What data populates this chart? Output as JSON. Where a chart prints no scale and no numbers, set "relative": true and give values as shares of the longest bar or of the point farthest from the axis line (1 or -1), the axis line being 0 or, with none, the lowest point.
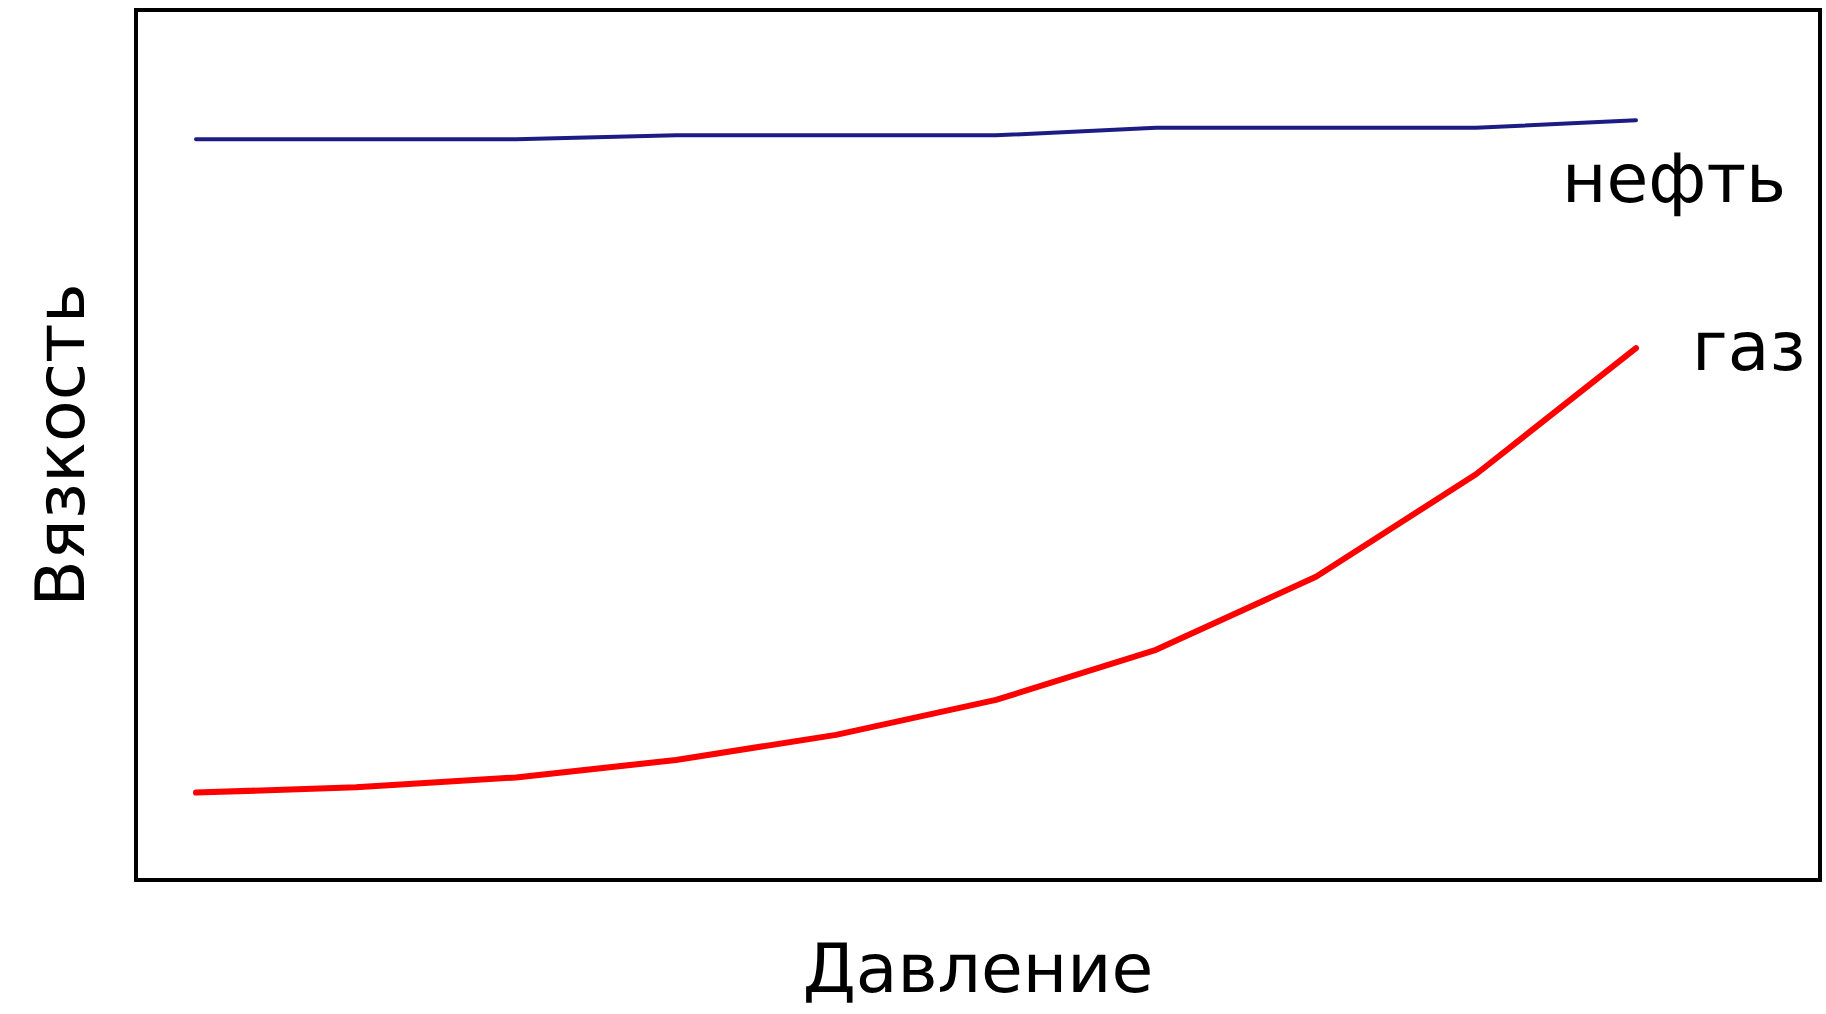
{
  "chart_data": {
    "type": "line",
    "relative": true,
    "xlabel": "Давление",
    "ylabel": "Вязкость",
    "legend": false,
    "grid": false,
    "marker": "none",
    "categories": [
      null,
      null,
      null,
      null,
      null,
      null,
      null,
      null,
      null,
      null
    ],
    "series": [
      {
        "name": "нефть",
        "color": "#1c1c84",
        "values": [
          0.975,
          0.975,
          0.975,
          0.98,
          0.98,
          0.98,
          0.99,
          0.99,
          0.99,
          1.0
        ]
      },
      {
        "name": "газ",
        "color": "#ff0000",
        "values": [
          0.115,
          0.122,
          0.135,
          0.158,
          0.191,
          0.237,
          0.303,
          0.399,
          0.534,
          0.7
        ]
      }
    ]
  }
}
